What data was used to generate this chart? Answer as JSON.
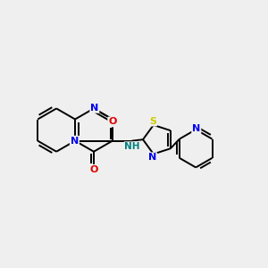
{
  "bg_color": "#efefef",
  "bond_color": "#000000",
  "bond_width": 1.4,
  "atoms": {
    "N_blue": "#0000ee",
    "O_red": "#dd0000",
    "S_yellow": "#cccc00",
    "N_teal": "#008080"
  },
  "xlim": [
    0,
    10
  ],
  "ylim": [
    0,
    10
  ]
}
